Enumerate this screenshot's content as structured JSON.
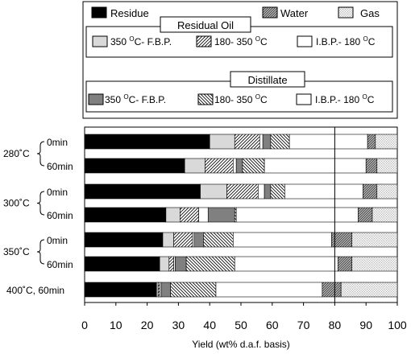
{
  "legend": {
    "top_items": [
      {
        "label": "Residue",
        "pattern": "black"
      },
      {
        "label": "Water",
        "pattern": "diag-dense"
      },
      {
        "label": "Gas",
        "pattern": "dots"
      }
    ],
    "residual_oil": {
      "title": "Residual Oil",
      "items": [
        {
          "label": "350 ",
          "sup": "O",
          "suffix": "C- F.B.P.",
          "pattern": "light-gray"
        },
        {
          "label": "180- 350 ",
          "sup": "O",
          "suffix": "C",
          "pattern": "diag-fwd"
        },
        {
          "label": "I.B.P.- 180 ",
          "sup": "O",
          "suffix": "C",
          "pattern": "white"
        }
      ]
    },
    "distillate": {
      "title": "Distillate",
      "items": [
        {
          "label": "350 ",
          "sup": "O",
          "suffix": "C- F.B.P.",
          "pattern": "dark-gray"
        },
        {
          "label": "180- 350 ",
          "sup": "O",
          "suffix": "C",
          "pattern": "diag-back"
        },
        {
          "label": "I.B.P.- 180 ",
          "sup": "O",
          "suffix": "C",
          "pattern": "white"
        }
      ]
    }
  },
  "chart_data": {
    "type": "bar",
    "orientation": "horizontal",
    "stacked": true,
    "xlabel": "Yield (wt% d.a.f. basis)",
    "xlim": [
      0,
      100
    ],
    "xticks": [
      0,
      10,
      20,
      30,
      40,
      50,
      60,
      70,
      80,
      90,
      100
    ],
    "reference_line": 80,
    "segment_order": [
      "Residue",
      "Residual Oil 350 °C- F.B.P.",
      "Residual Oil 180- 350 °C",
      "Residual Oil I.B.P.- 180 °C",
      "Distillate 350 °C- F.B.P.",
      "Distillate 180- 350 °C",
      "Distillate I.B.P.- 180 °C",
      "Water",
      "Gas"
    ],
    "segment_patterns": [
      "black",
      "light-gray",
      "diag-fwd",
      "white",
      "dark-gray",
      "diag-back",
      "white",
      "diag-dense",
      "dots"
    ],
    "groups": [
      {
        "label": "280˚C",
        "rows": [
          0,
          1
        ]
      },
      {
        "label": "300˚C",
        "rows": [
          2,
          3
        ]
      },
      {
        "label": "350˚C",
        "rows": [
          4,
          5
        ]
      }
    ],
    "rows": [
      {
        "label": "0min",
        "values": [
          40,
          8,
          8,
          1,
          2.5,
          6,
          25,
          2.5,
          7
        ]
      },
      {
        "label": "60min",
        "values": [
          32,
          6.5,
          9,
          1,
          2,
          7,
          32.5,
          3.5,
          6.5
        ]
      },
      {
        "label": "0min",
        "values": [
          37,
          8.5,
          10,
          2,
          2,
          4.5,
          25,
          4.5,
          6.5
        ]
      },
      {
        "label": "60min",
        "values": [
          26,
          4.5,
          6,
          3,
          8.5,
          0.5,
          39,
          4.5,
          8
        ]
      },
      {
        "label": "0min",
        "values": [
          25,
          3.5,
          6,
          0.5,
          3,
          9.5,
          31.5,
          6.5,
          14.5
        ]
      },
      {
        "label": "60min",
        "values": [
          24,
          3,
          1.5,
          0.5,
          3.5,
          15.5,
          33,
          4.5,
          14.5
        ]
      },
      {
        "label": "400˚C, 60min",
        "values": [
          23,
          0.5,
          0.5,
          0.5,
          3,
          14.5,
          34,
          6,
          18
        ]
      }
    ]
  }
}
